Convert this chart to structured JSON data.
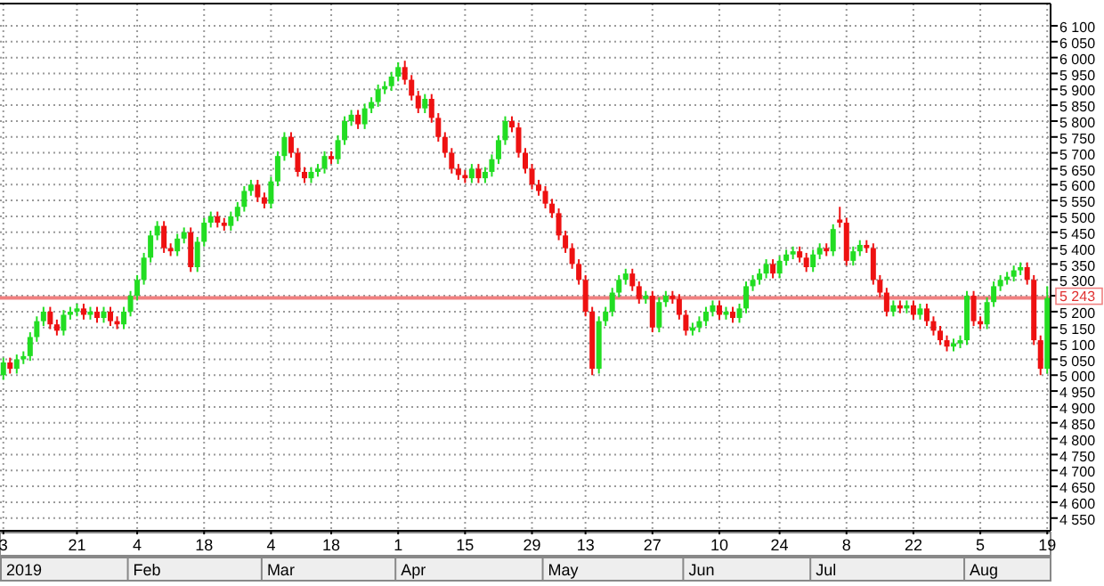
{
  "chart_data": {
    "type": "candlestick",
    "categories": [
      "3",
      null,
      null,
      null,
      null,
      null,
      null,
      null,
      null,
      null,
      null,
      "21",
      null,
      null,
      null,
      null,
      null,
      null,
      null,
      null,
      "4",
      null,
      null,
      null,
      null,
      null,
      null,
      null,
      null,
      null,
      "18",
      null,
      null,
      null,
      null,
      null,
      null,
      null,
      null,
      null,
      "4",
      null,
      null,
      null,
      null,
      null,
      null,
      null,
      null,
      "18",
      null,
      null,
      null,
      null,
      null,
      null,
      null,
      null,
      null,
      "1",
      null,
      null,
      null,
      null,
      null,
      null,
      null,
      null,
      null,
      "15",
      null,
      null,
      null,
      null,
      null,
      null,
      null,
      null,
      null,
      "29",
      null,
      null,
      null,
      null,
      null,
      null,
      null,
      "13",
      null,
      null,
      null,
      null,
      null,
      null,
      null,
      null,
      null,
      "27",
      null,
      null,
      null,
      null,
      null,
      null,
      null,
      null,
      null,
      "10",
      null,
      null,
      null,
      null,
      null,
      null,
      null,
      null,
      "24",
      null,
      null,
      null,
      null,
      null,
      null,
      null,
      null,
      null,
      "8",
      null,
      null,
      null,
      null,
      null,
      null,
      null,
      null,
      null,
      "22",
      null,
      null,
      null,
      null,
      null,
      null,
      null,
      null,
      null,
      "5",
      null,
      null,
      null,
      null,
      null,
      null,
      null,
      null,
      null,
      "19"
    ],
    "ohlc": [
      [
        5000,
        5055,
        4985,
        5040
      ],
      [
        5040,
        5055,
        5005,
        5020
      ],
      [
        5020,
        5065,
        5005,
        5050
      ],
      [
        5050,
        5075,
        5035,
        5060
      ],
      [
        5060,
        5135,
        5045,
        5120
      ],
      [
        5120,
        5185,
        5105,
        5170
      ],
      [
        5170,
        5215,
        5155,
        5200
      ],
      [
        5200,
        5215,
        5145,
        5160
      ],
      [
        5160,
        5175,
        5125,
        5140
      ],
      [
        5140,
        5205,
        5125,
        5190
      ],
      [
        5190,
        5215,
        5175,
        5200
      ],
      [
        5200,
        5225,
        5185,
        5210
      ],
      [
        5210,
        5225,
        5175,
        5190
      ],
      [
        5190,
        5215,
        5175,
        5200
      ],
      [
        5200,
        5215,
        5165,
        5180
      ],
      [
        5180,
        5215,
        5165,
        5200
      ],
      [
        5200,
        5215,
        5155,
        5170
      ],
      [
        5170,
        5185,
        5145,
        5160
      ],
      [
        5160,
        5215,
        5145,
        5200
      ],
      [
        5200,
        5265,
        5185,
        5250
      ],
      [
        5250,
        5315,
        5235,
        5300
      ],
      [
        5300,
        5385,
        5285,
        5370
      ],
      [
        5370,
        5455,
        5355,
        5440
      ],
      [
        5440,
        5485,
        5425,
        5470
      ],
      [
        5470,
        5485,
        5385,
        5400
      ],
      [
        5400,
        5415,
        5375,
        5390
      ],
      [
        5390,
        5445,
        5375,
        5430
      ],
      [
        5430,
        5465,
        5415,
        5450
      ],
      [
        5450,
        5465,
        5325,
        5340
      ],
      [
        5340,
        5435,
        5325,
        5420
      ],
      [
        5420,
        5495,
        5405,
        5480
      ],
      [
        5480,
        5515,
        5465,
        5500
      ],
      [
        5500,
        5515,
        5465,
        5480
      ],
      [
        5480,
        5495,
        5455,
        5470
      ],
      [
        5470,
        5515,
        5455,
        5500
      ],
      [
        5500,
        5545,
        5485,
        5530
      ],
      [
        5530,
        5595,
        5515,
        5580
      ],
      [
        5580,
        5615,
        5565,
        5600
      ],
      [
        5600,
        5615,
        5545,
        5560
      ],
      [
        5560,
        5575,
        5525,
        5540
      ],
      [
        5540,
        5625,
        5525,
        5610
      ],
      [
        5610,
        5705,
        5595,
        5690
      ],
      [
        5690,
        5765,
        5675,
        5750
      ],
      [
        5750,
        5765,
        5685,
        5700
      ],
      [
        5700,
        5715,
        5625,
        5640
      ],
      [
        5640,
        5655,
        5605,
        5620
      ],
      [
        5620,
        5655,
        5605,
        5640
      ],
      [
        5640,
        5665,
        5625,
        5650
      ],
      [
        5650,
        5705,
        5635,
        5690
      ],
      [
        5690,
        5705,
        5665,
        5680
      ],
      [
        5680,
        5755,
        5665,
        5740
      ],
      [
        5740,
        5815,
        5725,
        5800
      ],
      [
        5800,
        5835,
        5785,
        5820
      ],
      [
        5820,
        5835,
        5775,
        5790
      ],
      [
        5790,
        5855,
        5775,
        5840
      ],
      [
        5840,
        5875,
        5825,
        5860
      ],
      [
        5860,
        5915,
        5845,
        5900
      ],
      [
        5900,
        5925,
        5885,
        5910
      ],
      [
        5910,
        5955,
        5895,
        5940
      ],
      [
        5940,
        5985,
        5925,
        5970
      ],
      [
        5970,
        5990,
        5915,
        5930
      ],
      [
        5930,
        5945,
        5865,
        5880
      ],
      [
        5880,
        5895,
        5825,
        5840
      ],
      [
        5840,
        5885,
        5825,
        5870
      ],
      [
        5870,
        5885,
        5795,
        5810
      ],
      [
        5810,
        5825,
        5735,
        5750
      ],
      [
        5750,
        5765,
        5685,
        5700
      ],
      [
        5700,
        5715,
        5635,
        5650
      ],
      [
        5650,
        5665,
        5615,
        5630
      ],
      [
        5630,
        5645,
        5605,
        5620
      ],
      [
        5620,
        5665,
        5605,
        5650
      ],
      [
        5650,
        5665,
        5605,
        5620
      ],
      [
        5620,
        5655,
        5605,
        5640
      ],
      [
        5640,
        5695,
        5625,
        5680
      ],
      [
        5680,
        5755,
        5665,
        5740
      ],
      [
        5740,
        5815,
        5725,
        5800
      ],
      [
        5800,
        5815,
        5765,
        5780
      ],
      [
        5780,
        5795,
        5685,
        5700
      ],
      [
        5700,
        5715,
        5635,
        5650
      ],
      [
        5650,
        5665,
        5585,
        5600
      ],
      [
        5600,
        5615,
        5565,
        5580
      ],
      [
        5580,
        5595,
        5525,
        5540
      ],
      [
        5540,
        5555,
        5495,
        5510
      ],
      [
        5510,
        5525,
        5425,
        5440
      ],
      [
        5440,
        5455,
        5385,
        5400
      ],
      [
        5400,
        5415,
        5335,
        5350
      ],
      [
        5350,
        5365,
        5285,
        5300
      ],
      [
        5300,
        5315,
        5185,
        5200
      ],
      [
        5200,
        5215,
        5000,
        5020
      ],
      [
        5020,
        5185,
        5005,
        5170
      ],
      [
        5170,
        5215,
        5155,
        5200
      ],
      [
        5200,
        5275,
        5185,
        5260
      ],
      [
        5260,
        5315,
        5245,
        5300
      ],
      [
        5300,
        5335,
        5285,
        5320
      ],
      [
        5320,
        5335,
        5265,
        5280
      ],
      [
        5280,
        5295,
        5225,
        5240
      ],
      [
        5240,
        5265,
        5225,
        5250
      ],
      [
        5250,
        5265,
        5135,
        5150
      ],
      [
        5150,
        5245,
        5135,
        5230
      ],
      [
        5230,
        5265,
        5215,
        5250
      ],
      [
        5250,
        5265,
        5225,
        5240
      ],
      [
        5240,
        5255,
        5175,
        5190
      ],
      [
        5190,
        5205,
        5125,
        5140
      ],
      [
        5140,
        5165,
        5125,
        5150
      ],
      [
        5150,
        5185,
        5135,
        5170
      ],
      [
        5170,
        5215,
        5155,
        5200
      ],
      [
        5200,
        5235,
        5185,
        5220
      ],
      [
        5220,
        5235,
        5175,
        5190
      ],
      [
        5190,
        5215,
        5175,
        5200
      ],
      [
        5200,
        5215,
        5165,
        5180
      ],
      [
        5180,
        5225,
        5165,
        5210
      ],
      [
        5210,
        5295,
        5195,
        5280
      ],
      [
        5280,
        5315,
        5265,
        5300
      ],
      [
        5300,
        5335,
        5285,
        5320
      ],
      [
        5320,
        5365,
        5305,
        5350
      ],
      [
        5350,
        5365,
        5305,
        5320
      ],
      [
        5320,
        5375,
        5305,
        5360
      ],
      [
        5360,
        5395,
        5345,
        5380
      ],
      [
        5380,
        5405,
        5365,
        5390
      ],
      [
        5390,
        5405,
        5355,
        5370
      ],
      [
        5370,
        5385,
        5325,
        5340
      ],
      [
        5340,
        5395,
        5325,
        5380
      ],
      [
        5380,
        5415,
        5365,
        5400
      ],
      [
        5400,
        5415,
        5375,
        5390
      ],
      [
        5390,
        5475,
        5375,
        5460
      ],
      [
        5490,
        5530,
        5465,
        5480
      ],
      [
        5480,
        5495,
        5345,
        5360
      ],
      [
        5360,
        5405,
        5345,
        5390
      ],
      [
        5390,
        5425,
        5375,
        5410
      ],
      [
        5410,
        5425,
        5385,
        5400
      ],
      [
        5400,
        5415,
        5285,
        5300
      ],
      [
        5300,
        5315,
        5245,
        5260
      ],
      [
        5260,
        5275,
        5185,
        5200
      ],
      [
        5200,
        5235,
        5185,
        5220
      ],
      [
        5220,
        5235,
        5195,
        5210
      ],
      [
        5210,
        5235,
        5195,
        5220
      ],
      [
        5220,
        5235,
        5175,
        5190
      ],
      [
        5190,
        5225,
        5175,
        5210
      ],
      [
        5210,
        5225,
        5155,
        5170
      ],
      [
        5170,
        5185,
        5125,
        5140
      ],
      [
        5140,
        5155,
        5095,
        5110
      ],
      [
        5110,
        5125,
        5075,
        5090
      ],
      [
        5090,
        5115,
        5075,
        5100
      ],
      [
        5100,
        5125,
        5085,
        5110
      ],
      [
        5110,
        5265,
        5095,
        5250
      ],
      [
        5250,
        5265,
        5155,
        5170
      ],
      [
        5170,
        5185,
        5145,
        5160
      ],
      [
        5160,
        5245,
        5145,
        5230
      ],
      [
        5230,
        5295,
        5215,
        5280
      ],
      [
        5280,
        5315,
        5265,
        5300
      ],
      [
        5300,
        5325,
        5285,
        5310
      ],
      [
        5310,
        5345,
        5295,
        5330
      ],
      [
        5330,
        5355,
        5315,
        5340
      ],
      [
        5340,
        5355,
        5285,
        5300
      ],
      [
        5300,
        5315,
        5095,
        5110
      ],
      [
        5110,
        5125,
        5000,
        5020
      ],
      [
        5020,
        5280,
        5005,
        5243
      ]
    ],
    "ylim": [
      4510,
      6170
    ],
    "yticks": [
      {
        "value": 4550,
        "label": "4 550"
      },
      {
        "value": 4600,
        "label": "4 600"
      },
      {
        "value": 4650,
        "label": "4 650"
      },
      {
        "value": 4700,
        "label": "4 700"
      },
      {
        "value": 4750,
        "label": "4 750"
      },
      {
        "value": 4800,
        "label": "4 800"
      },
      {
        "value": 4850,
        "label": "4 850"
      },
      {
        "value": 4900,
        "label": "4 900"
      },
      {
        "value": 4950,
        "label": "4 950"
      },
      {
        "value": 5000,
        "label": "5 000"
      },
      {
        "value": 5050,
        "label": "5 050"
      },
      {
        "value": 5100,
        "label": "5 100"
      },
      {
        "value": 5150,
        "label": "5 150"
      },
      {
        "value": 5200,
        "label": "5 200"
      },
      {
        "value": 5250,
        "label": null
      },
      {
        "value": 5300,
        "label": "5 300"
      },
      {
        "value": 5350,
        "label": "5 350"
      },
      {
        "value": 5400,
        "label": "5 400"
      },
      {
        "value": 5450,
        "label": "5 450"
      },
      {
        "value": 5500,
        "label": "5 500"
      },
      {
        "value": 5550,
        "label": "5 550"
      },
      {
        "value": 5600,
        "label": "5 600"
      },
      {
        "value": 5650,
        "label": "5 650"
      },
      {
        "value": 5700,
        "label": "5 700"
      },
      {
        "value": 5750,
        "label": "5 750"
      },
      {
        "value": 5800,
        "label": "5 800"
      },
      {
        "value": 5850,
        "label": "5 850"
      },
      {
        "value": 5900,
        "label": "5 900"
      },
      {
        "value": 5950,
        "label": "5 950"
      },
      {
        "value": 6000,
        "label": "6 000"
      },
      {
        "value": 6050,
        "label": "6 050"
      },
      {
        "value": 6100,
        "label": "6 100"
      }
    ],
    "grid": true,
    "ref_lines": [
      {
        "axis": "y",
        "value": 5243,
        "label": "5 243",
        "color": "#f08080"
      }
    ],
    "annotations": [
      "2019",
      "Feb",
      "Mar",
      "Apr",
      "May",
      "Jun",
      "Jul",
      "Aug"
    ]
  }
}
